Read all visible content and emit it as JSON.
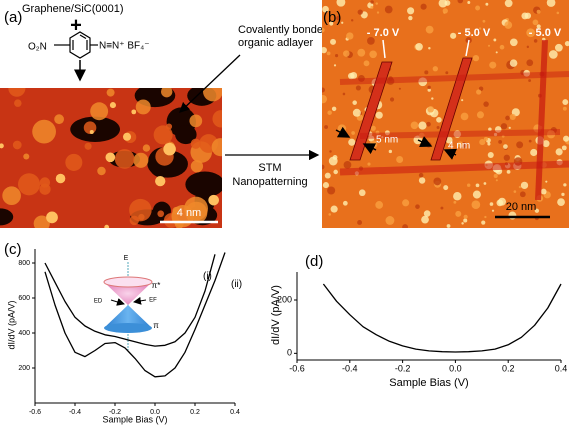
{
  "figure": {
    "a": {
      "label": "(a)",
      "substrate": "Graphene/SiC(0001)",
      "plus": "+",
      "nitro": "O₂N",
      "diazonium": "N≡N⁺ BF₄⁻",
      "adlayer_note": "Covalently bonded organic adlayer",
      "scale": "4 nm"
    },
    "arrow_label": [
      "STM",
      "Nanopatterning"
    ],
    "b": {
      "label": "(b)",
      "voltages": [
        "- 7.0 V",
        "- 5.0 V",
        "- 5.0 V"
      ],
      "widths": [
        "5 nm",
        "4 nm"
      ],
      "scale": "20 nm"
    }
  },
  "chart_data": [
    {
      "type": "line",
      "title": "(c)",
      "x_label": "Sample Bias (V)",
      "y_label": "dI/dV (pA/V)",
      "x": [
        -0.55,
        -0.5,
        -0.45,
        -0.4,
        -0.35,
        -0.3,
        -0.25,
        -0.2,
        -0.15,
        -0.1,
        -0.05,
        0,
        0.05,
        0.1,
        0.15,
        0.2,
        0.25,
        0.3,
        0.35,
        0.4
      ],
      "series": [
        {
          "name": "(i)",
          "color": "#000000",
          "values": [
            800,
            690,
            580,
            490,
            440,
            410,
            390,
            380,
            365,
            350,
            335,
            325,
            330,
            350,
            400,
            490,
            640,
            850,
            null,
            null
          ]
        },
        {
          "name": "(ii)",
          "color": "#000000",
          "values": [
            750,
            560,
            400,
            290,
            265,
            300,
            340,
            345,
            315,
            255,
            185,
            150,
            155,
            200,
            290,
            420,
            560,
            700,
            860,
            null
          ]
        }
      ],
      "xlim": [
        -0.6,
        0.4
      ],
      "xticks": [
        -0.6,
        -0.4,
        -0.2,
        {
          "value": 0,
          "label": "0.0"
        },
        0.2,
        0.4
      ],
      "ylim": [
        0,
        880
      ],
      "yticks": [
        200,
        400,
        600,
        800
      ],
      "annotations": [
        "E",
        "π*",
        "π",
        "ED",
        "EF"
      ]
    },
    {
      "type": "line",
      "title": "(d)",
      "x_label": "Sample Bias (V)",
      "y_label": "dI/dV (pA/V)",
      "x": [
        -0.5,
        -0.45,
        -0.4,
        -0.35,
        -0.3,
        -0.25,
        -0.2,
        -0.15,
        -0.1,
        -0.05,
        0,
        0.05,
        0.1,
        0.15,
        0.2,
        0.25,
        0.3,
        0.35,
        0.4
      ],
      "series": [
        {
          "name": null,
          "color": "#000000",
          "values": [
            260,
            195,
            145,
            100,
            70,
            45,
            28,
            16,
            9,
            6,
            5,
            6,
            9,
            16,
            32,
            60,
            105,
            170,
            260
          ]
        }
      ],
      "xlim": [
        -0.6,
        0.4
      ],
      "xticks": [
        -0.6,
        -0.4,
        -0.2,
        {
          "value": 0,
          "label": "0.0"
        },
        0.2,
        0.4
      ],
      "ylim": [
        -25,
        305
      ],
      "yticks": [
        0,
        200
      ]
    }
  ]
}
